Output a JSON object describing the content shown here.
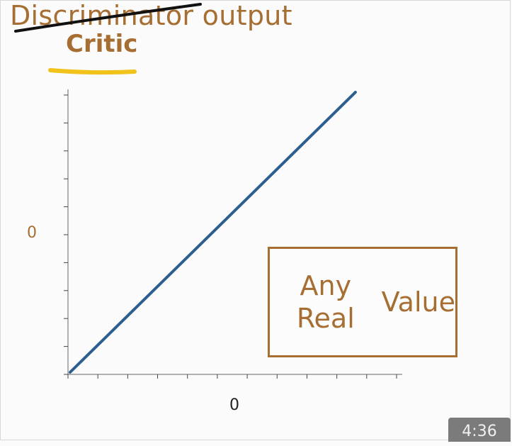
{
  "header": {
    "title_struck": "Discriminator output",
    "title_replacement": "Critic"
  },
  "chart_data": {
    "type": "line",
    "title": "",
    "xlabel": "",
    "ylabel": "",
    "x_tick_label": "0",
    "y_tick_label": "0",
    "xlim": [
      -1,
      1
    ],
    "ylim": [
      -1,
      1
    ],
    "series": [
      {
        "x": [
          -1,
          0.72
        ],
        "y": [
          -1,
          0.98
        ]
      }
    ],
    "annotation": "Any Real\nValue",
    "colors": {
      "line": "#2c5f8f",
      "accent": "#a66e32",
      "highlight": "#f0c21a"
    }
  },
  "player": {
    "timestamp": "4:36"
  }
}
